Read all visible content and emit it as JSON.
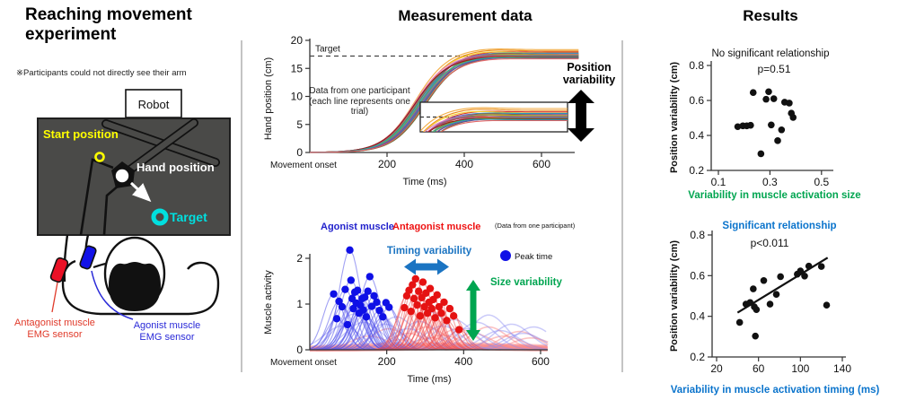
{
  "panels": {
    "experiment": {
      "title": "Reaching movement experiment",
      "note": "※Participants could not directly see their arm",
      "robot_label": "Robot",
      "start_label": "Start position",
      "hand_label": "Hand position",
      "target_label": "Target",
      "antagonist_label": [
        "Antagonist muscle",
        "EMG sensor"
      ],
      "agonist_label": [
        "Agonist muscle",
        "EMG sensor"
      ],
      "colors": {
        "board": "#4a4a48",
        "start": "#ffff00",
        "target": "#00dfdf",
        "antagonist_sensor": "#ea1126",
        "agonist_sensor": "#1212e8",
        "antagonist_text": "#e03a2a",
        "agonist_text": "#2a2ad8"
      }
    },
    "measurement": {
      "title": "Measurement data"
    },
    "results": {
      "title": "Results"
    }
  },
  "chart_data": [
    {
      "id": "hand_position",
      "type": "line",
      "xlabel": "Time (ms)",
      "ylabel": "Hand position (cm)",
      "origin_label": "Movement onset",
      "x_ticks": [
        200,
        400,
        600
      ],
      "y_ticks": [
        0,
        5,
        10,
        15,
        20
      ],
      "xlim": [
        0,
        700
      ],
      "ylim": [
        0,
        20
      ],
      "target_line": {
        "label": "Target",
        "value": 17.2
      },
      "annotation": "Data from one participant (each line represents one trial)",
      "right_label": "Position variability",
      "inset": {
        "xlim": [
          340,
          700
        ],
        "ylim": [
          15.2,
          19.2
        ],
        "dash_value": 17.2
      },
      "rise": {
        "mid": 285,
        "slope": 42,
        "overshoot_center": 470,
        "overshoot_width": 55
      },
      "trials": [
        [
          -12,
          18.35,
          0.25,
          "#f2a93b"
        ],
        [
          -6,
          18.1,
          0.3,
          "#e8850c"
        ],
        [
          5,
          17.9,
          0.2,
          "#d62728"
        ],
        [
          -10,
          17.75,
          0.35,
          "#f5d327"
        ],
        [
          0,
          17.7,
          0.15,
          "#1f77b4"
        ],
        [
          8,
          17.6,
          0.25,
          "#17becf"
        ],
        [
          -4,
          17.55,
          0.2,
          "#9467bd"
        ],
        [
          11,
          17.5,
          0.3,
          "#8c564b"
        ],
        [
          -14,
          17.45,
          0.1,
          "#e377c2"
        ],
        [
          6,
          17.4,
          0.25,
          "#bcbd22"
        ],
        [
          -7,
          17.35,
          0.15,
          "#2ca02c"
        ],
        [
          13,
          17.3,
          0.2,
          "#ff7f0e"
        ],
        [
          -9,
          17.25,
          0.3,
          "#7f7f7f"
        ],
        [
          2,
          17.2,
          0.1,
          "#4b77d1"
        ],
        [
          -13,
          17.1,
          0.25,
          "#cc3366"
        ],
        [
          9,
          17.05,
          0.15,
          "#2e8b8b"
        ],
        [
          -2,
          17.0,
          0.2,
          "#b8860b"
        ],
        [
          14,
          16.95,
          0.1,
          "#556b2f"
        ],
        [
          -15,
          16.9,
          0.2,
          "#8b1a1a"
        ],
        [
          4,
          16.85,
          0.15,
          "#6a3fb5"
        ],
        [
          -5,
          16.8,
          0.25,
          "#20b2aa"
        ],
        [
          10,
          16.72,
          0.1,
          "#e05c5c"
        ]
      ]
    },
    {
      "id": "muscle_activity",
      "type": "line",
      "xlabel": "Time (ms)",
      "ylabel": "Muscle activity",
      "origin_label": "Movement onset",
      "x_ticks": [
        200,
        400,
        600
      ],
      "y_ticks": [
        0,
        1,
        2
      ],
      "xlim": [
        0,
        700
      ],
      "ylim": [
        0,
        2.3
      ],
      "agonist_label": "Agonist muscle",
      "antagonist_label": "Antagonist muscle",
      "note": "(Data from one participant)",
      "timing_label": "Timing variability",
      "size_label": "Size variability",
      "legend_label": "Peak time",
      "sigma": {
        "agonist": 27,
        "antagonist": 25,
        "bg": 48,
        "band": 170
      },
      "colors": {
        "agonist_dot": "#0f10e6",
        "antagonist_dot": "#e51212",
        "agonist_curve": "rgba(85,85,235,0.55)",
        "antagonist_curve": "rgba(240,75,75,0.5)",
        "bg_agonist": "rgba(140,140,242,0.45)",
        "bg_antagonist": "rgba(250,135,135,0.5)",
        "band": "rgba(250,140,140,0.42)",
        "timing": "#1b74c2",
        "size": "#00a550"
      },
      "agonist_peaks": [
        [
          62,
          1.22
        ],
        [
          70,
          0.68
        ],
        [
          76,
          1.06
        ],
        [
          84,
          0.94
        ],
        [
          92,
          1.32
        ],
        [
          98,
          0.55
        ],
        [
          104,
          2.18
        ],
        [
          107,
          1.52
        ],
        [
          110,
          1.12
        ],
        [
          113,
          0.9
        ],
        [
          117,
          1.26
        ],
        [
          121,
          1.02
        ],
        [
          124,
          1.3
        ],
        [
          128,
          0.8
        ],
        [
          132,
          0.97
        ],
        [
          136,
          1.12
        ],
        [
          139,
          0.87
        ],
        [
          143,
          1.15
        ],
        [
          147,
          0.72
        ],
        [
          151,
          1.28
        ],
        [
          156,
          1.6
        ],
        [
          161,
          0.95
        ],
        [
          167,
          1.18
        ],
        [
          174,
          1.04
        ],
        [
          181,
          0.86
        ],
        [
          190,
          0.72
        ],
        [
          198,
          1.03
        ],
        [
          206,
          0.93
        ]
      ],
      "antagonist_peaks": [
        [
          246,
          0.92
        ],
        [
          252,
          1.18
        ],
        [
          258,
          1.3
        ],
        [
          263,
          0.84
        ],
        [
          267,
          1.42
        ],
        [
          271,
          1.12
        ],
        [
          275,
          1.55
        ],
        [
          279,
          0.98
        ],
        [
          283,
          1.28
        ],
        [
          287,
          0.74
        ],
        [
          291,
          1.14
        ],
        [
          294,
          1.48
        ],
        [
          298,
          0.94
        ],
        [
          302,
          1.24
        ],
        [
          306,
          0.8
        ],
        [
          310,
          1.04
        ],
        [
          313,
          1.34
        ],
        [
          317,
          0.9
        ],
        [
          321,
          1.1
        ],
        [
          326,
          0.7
        ],
        [
          331,
          1.2
        ],
        [
          336,
          0.94
        ],
        [
          342,
          0.8
        ],
        [
          349,
          1.04
        ],
        [
          356,
          0.64
        ],
        [
          364,
          0.9
        ],
        [
          374,
          0.74
        ],
        [
          388,
          0.44
        ]
      ],
      "bg_agonist": [
        [
          85,
          0.52
        ],
        [
          115,
          0.78
        ],
        [
          140,
          0.6
        ],
        [
          165,
          0.92
        ],
        [
          195,
          0.56
        ],
        [
          225,
          0.72
        ],
        [
          255,
          0.46
        ],
        [
          285,
          0.62
        ],
        [
          315,
          0.82
        ],
        [
          345,
          0.52
        ],
        [
          375,
          0.66
        ],
        [
          405,
          0.46
        ],
        [
          435,
          0.6
        ],
        [
          465,
          0.76
        ],
        [
          495,
          0.42
        ],
        [
          525,
          0.56
        ],
        [
          555,
          0.36
        ],
        [
          582,
          0.5
        ]
      ],
      "bg_antagonist": [
        [
          155,
          0.3
        ],
        [
          205,
          0.46
        ],
        [
          255,
          0.36
        ],
        [
          305,
          0.5
        ],
        [
          345,
          0.32
        ],
        [
          385,
          0.46
        ],
        [
          425,
          0.36
        ],
        [
          465,
          0.5
        ],
        [
          505,
          0.3
        ],
        [
          545,
          0.4
        ],
        [
          575,
          0.26
        ],
        [
          235,
          0.22
        ],
        [
          315,
          0.26
        ]
      ],
      "bg_band": [
        [
          180,
          0.1
        ],
        [
          260,
          0.13
        ],
        [
          340,
          0.11
        ],
        [
          420,
          0.09
        ],
        [
          500,
          0.1
        ],
        [
          560,
          0.07
        ],
        [
          220,
          0.07
        ],
        [
          300,
          0.09
        ],
        [
          380,
          0.13
        ],
        [
          460,
          0.06
        ]
      ]
    },
    {
      "id": "size_scatter",
      "type": "scatter",
      "title": "No significant relationship",
      "subtitle": "p=0.51",
      "xlabel": "Variability in muscle activation size",
      "ylabel": "Position variability (cm)",
      "x_ticks": [
        0.1,
        0.3,
        0.5
      ],
      "y_ticks": [
        0.2,
        0.4,
        0.6,
        0.8
      ],
      "xlim": [
        0.08,
        0.53
      ],
      "ylim": [
        0.2,
        0.8
      ],
      "title_color": "#111111",
      "xlabel_color": "#00a550",
      "points": [
        [
          0.175,
          0.45
        ],
        [
          0.195,
          0.455
        ],
        [
          0.21,
          0.455
        ],
        [
          0.225,
          0.458
        ],
        [
          0.235,
          0.645
        ],
        [
          0.265,
          0.295
        ],
        [
          0.285,
          0.607
        ],
        [
          0.295,
          0.65
        ],
        [
          0.305,
          0.46
        ],
        [
          0.315,
          0.61
        ],
        [
          0.33,
          0.37
        ],
        [
          0.345,
          0.432
        ],
        [
          0.357,
          0.59
        ],
        [
          0.375,
          0.585
        ],
        [
          0.383,
          0.527
        ],
        [
          0.39,
          0.503
        ]
      ]
    },
    {
      "id": "timing_scatter",
      "type": "scatter",
      "title": "Significant relationship",
      "subtitle": "p<0.011",
      "xlabel": "Variability in muscle activation timing (ms)",
      "ylabel": "Position variability (cm)",
      "x_ticks": [
        20,
        60,
        100,
        140
      ],
      "y_ticks": [
        0.2,
        0.4,
        0.6,
        0.8
      ],
      "xlim": [
        15,
        145
      ],
      "ylim": [
        0.2,
        0.8
      ],
      "title_color": "#0b74cc",
      "xlabel_color": "#0b74cc",
      "fit_line": {
        "x1": 40,
        "y1": 0.418,
        "x2": 126,
        "y2": 0.688
      },
      "points": [
        [
          42,
          0.37
        ],
        [
          48,
          0.46
        ],
        [
          52,
          0.468
        ],
        [
          55,
          0.535
        ],
        [
          56,
          0.447
        ],
        [
          58,
          0.433
        ],
        [
          57,
          0.303
        ],
        [
          65,
          0.576
        ],
        [
          71,
          0.46
        ],
        [
          77,
          0.508
        ],
        [
          81,
          0.595
        ],
        [
          97,
          0.607
        ],
        [
          100,
          0.623
        ],
        [
          104,
          0.598
        ],
        [
          108,
          0.647
        ],
        [
          120,
          0.645
        ],
        [
          125,
          0.455
        ]
      ]
    }
  ]
}
